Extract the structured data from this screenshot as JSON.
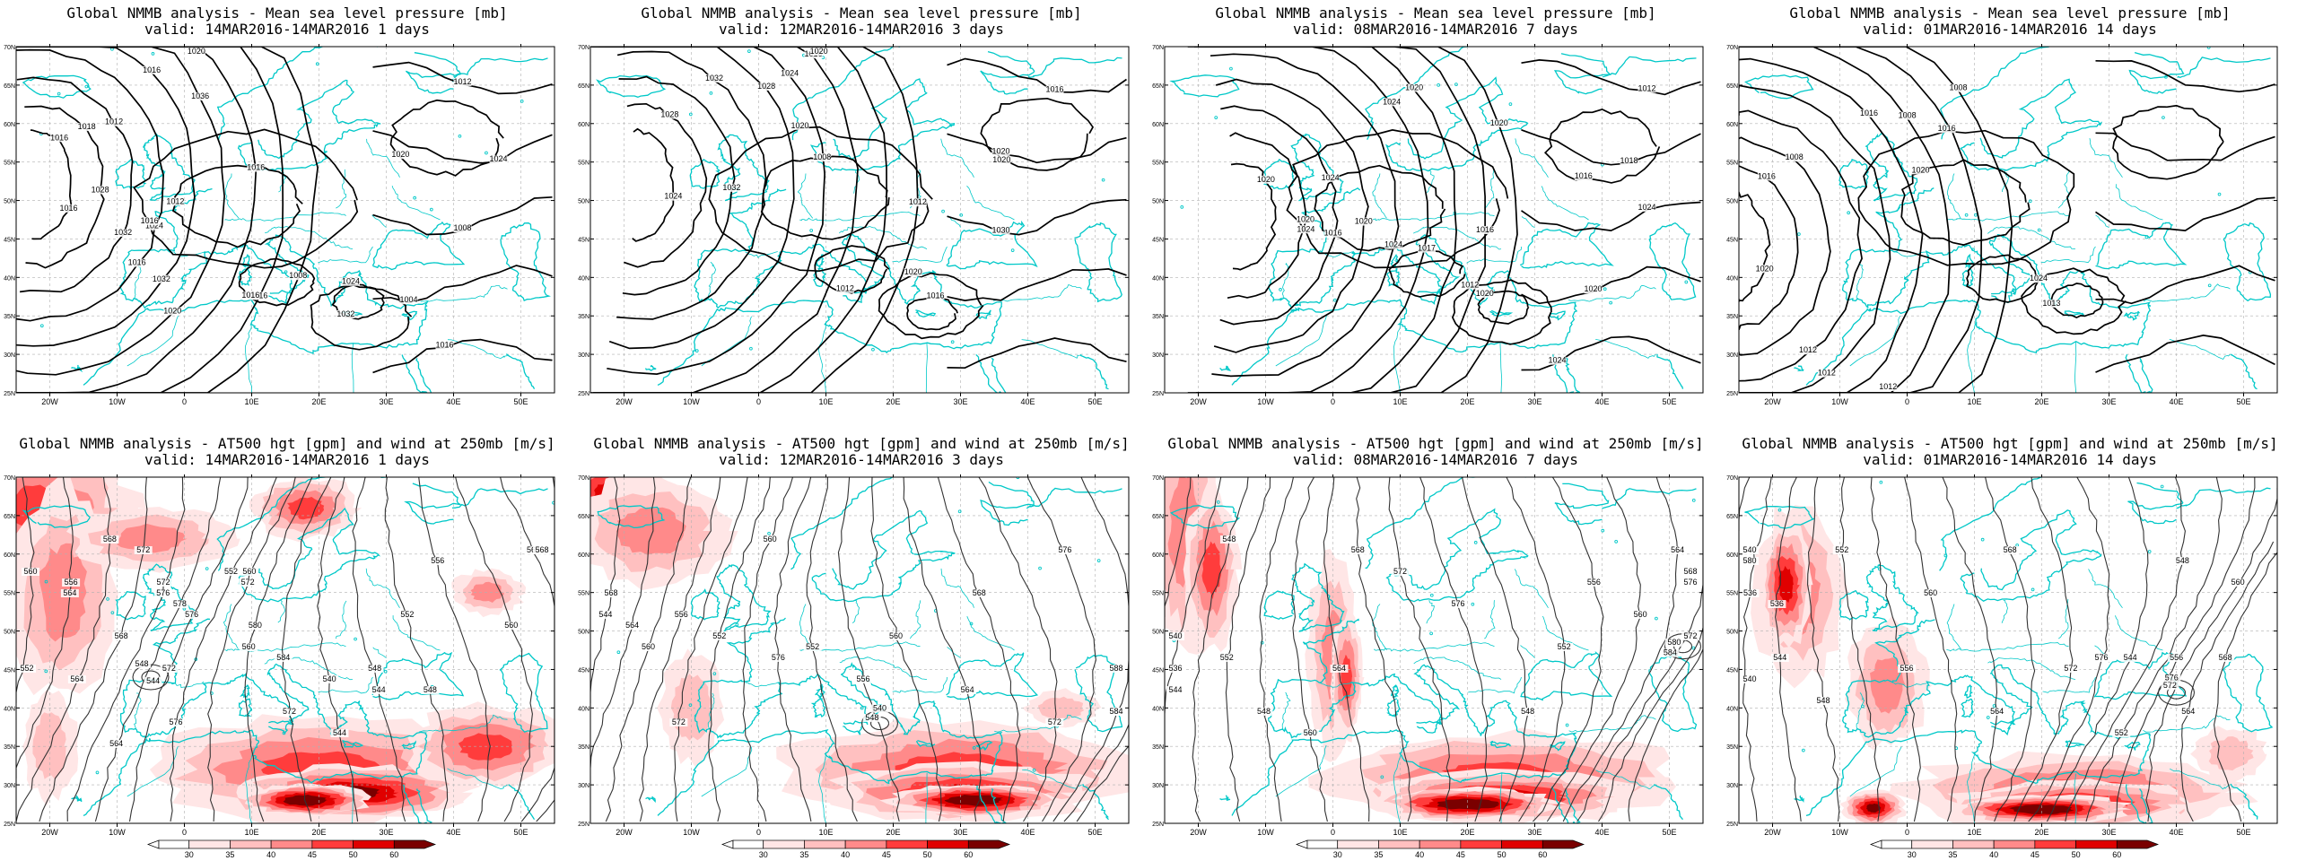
{
  "figure": {
    "rows": [
      {
        "variable": "mslp",
        "title": "Global NMMB analysis - Mean sea level pressure [mb]",
        "panels": [
          {
            "valid": "valid: 14MAR2016-14MAR2016  1 days",
            "contours": [
              "1016",
              "1028",
              "1032",
              "1024",
              "1032",
              "1036",
              "1020",
              "1016",
              "1008",
              "1012",
              "1016",
              "1032",
              "1024",
              "1020",
              "1016",
              "1012",
              "1024",
              "1008",
              "1004",
              "1016",
              "1016",
              "1018",
              "1012",
              "1016",
              "1016",
              "1020",
              "1016"
            ]
          },
          {
            "valid": "valid: 12MAR2016-14MAR2016  3 days",
            "contours": [
              "1024",
              "1028",
              "1032",
              "1032",
              "1028",
              "1024",
              "1016",
              "1020",
              "1012",
              "1008",
              "1020",
              "1016",
              "1020",
              "1020",
              "1012",
              "1016",
              "1020",
              "1030"
            ]
          },
          {
            "valid": "valid: 08MAR2016-14MAR2016  7 days",
            "contours": [
              "1020",
              "1020",
              "1024",
              "1020",
              "1024",
              "1024",
              "1020",
              "1016",
              "1020",
              "1016",
              "1024",
              "1020",
              "1012",
              "1016",
              "1017",
              "1012",
              "1018",
              "1024",
              "1020",
              "1024"
            ]
          },
          {
            "valid": "valid: 01MAR2016-14MAR2016  14 days",
            "contours": [
              "1020",
              "1016",
              "1008",
              "1012",
              "1012",
              "1016",
              "1008",
              "1012",
              "1008",
              "1020",
              "1016",
              "1013",
              "1024"
            ]
          }
        ]
      },
      {
        "variable": "z500_wind250",
        "title": "Global NMMB analysis - AT500 hgt [gpm] and wind at 250mb [m/s]",
        "panels": [
          {
            "valid": "valid: 14MAR2016-14MAR2016  1 days",
            "contours": [
              "560",
              "564",
              "568",
              "572",
              "576",
              "578",
              "572",
              "552",
              "560",
              "580",
              "572",
              "544",
              "548",
              "552",
              "556",
              "560",
              "564",
              "568",
              "544",
              "548",
              "552",
              "556",
              "564",
              "568",
              "572",
              "564",
              "576",
              "576",
              "572",
              "560",
              "584",
              "540",
              "544",
              "548"
            ]
          },
          {
            "valid": "valid: 12MAR2016-14MAR2016  3 days",
            "contours": [
              "568",
              "564",
              "560",
              "556",
              "572",
              "552",
              "560",
              "576",
              "552",
              "556",
              "560",
              "564",
              "568",
              "572",
              "576",
              "580",
              "584",
              "588",
              "548",
              "540",
              "544"
            ]
          },
          {
            "valid": "valid: 08MAR2016-14MAR2016  7 days",
            "contours": [
              "540",
              "544",
              "548",
              "552",
              "548",
              "560",
              "564",
              "568",
              "572",
              "576",
              "548",
              "552",
              "556",
              "560",
              "564",
              "568",
              "572",
              "576",
              "580",
              "584",
              "536"
            ]
          },
          {
            "valid": "valid: 01MAR2016-14MAR2016  14 days",
            "contours": [
              "540",
              "536",
              "544",
              "548",
              "552",
              "556",
              "560",
              "564",
              "568",
              "572",
              "576",
              "544",
              "548",
              "552",
              "556",
              "560",
              "564",
              "568",
              "572",
              "576",
              "580",
              "540",
              "536"
            ]
          }
        ]
      }
    ],
    "lon_ticks": [
      "20W",
      "10W",
      "0",
      "10E",
      "20E",
      "30E",
      "40E",
      "50E"
    ],
    "lat_ticks": [
      "70N",
      "65N",
      "60N",
      "55N",
      "50N",
      "45N",
      "40N",
      "35N",
      "30N",
      "25N"
    ],
    "colorbar_ticks": [
      "30",
      "35",
      "40",
      "45",
      "50",
      "60"
    ],
    "colors": {
      "contour": "#000000",
      "coast": "#00c8c8",
      "wind_scale": [
        "#ffe6e6",
        "#ffc0c0",
        "#ff8a8a",
        "#ff3c3c",
        "#e00000",
        "#7a0000"
      ]
    }
  }
}
